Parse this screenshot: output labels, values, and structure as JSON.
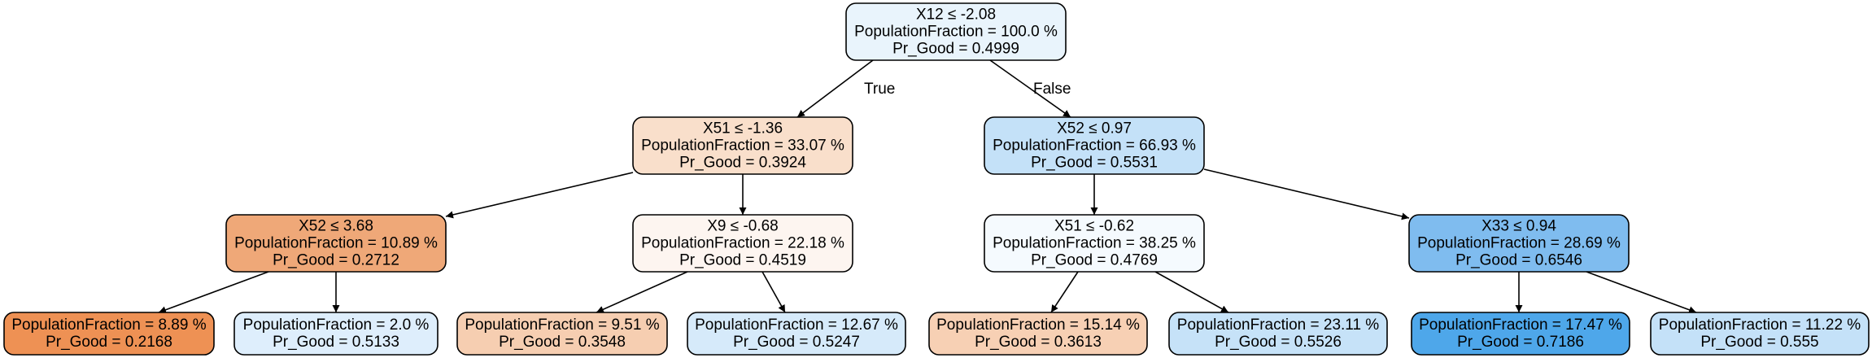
{
  "tree": {
    "nodes": [
      {
        "id": "root",
        "lines": [
          "X12 ≤ -2.08",
          "PopulationFraction = 100.0 %",
          "Pr_Good = 0.4999"
        ],
        "fill": "#e9f4fc"
      },
      {
        "id": "n1",
        "lines": [
          "X51 ≤ -1.36",
          "PopulationFraction = 33.07 %",
          "Pr_Good = 0.3924"
        ],
        "fill": "#f9dfcb"
      },
      {
        "id": "n2",
        "lines": [
          "X52 ≤ 0.97",
          "PopulationFraction = 66.93 %",
          "Pr_Good = 0.5531"
        ],
        "fill": "#c4e1f8"
      },
      {
        "id": "n3",
        "lines": [
          "X52 ≤ 3.68",
          "PopulationFraction = 10.89 %",
          "Pr_Good = 0.2712"
        ],
        "fill": "#efa878"
      },
      {
        "id": "n4",
        "lines": [
          "X9 ≤ -0.68",
          "PopulationFraction = 22.18 %",
          "Pr_Good = 0.4519"
        ],
        "fill": "#fdf5f0"
      },
      {
        "id": "n5",
        "lines": [
          "X51 ≤ -0.62",
          "PopulationFraction = 38.25 %",
          "Pr_Good = 0.4769"
        ],
        "fill": "#f5fafe"
      },
      {
        "id": "n6",
        "lines": [
          "X33 ≤ 0.94",
          "PopulationFraction = 28.69 %",
          "Pr_Good = 0.6546"
        ],
        "fill": "#7fbcef"
      },
      {
        "id": "l1",
        "lines": [
          "PopulationFraction = 8.89 %",
          "Pr_Good = 0.2168"
        ],
        "fill": "#ee9154"
      },
      {
        "id": "l2",
        "lines": [
          "PopulationFraction = 2.0 %",
          "Pr_Good = 0.5133"
        ],
        "fill": "#deeefc"
      },
      {
        "id": "l3",
        "lines": [
          "PopulationFraction = 9.51 %",
          "Pr_Good = 0.3548"
        ],
        "fill": "#f6ceb1"
      },
      {
        "id": "l4",
        "lines": [
          "PopulationFraction = 12.67 %",
          "Pr_Good = 0.5247"
        ],
        "fill": "#d6eafa"
      },
      {
        "id": "l5",
        "lines": [
          "PopulationFraction = 15.14 %",
          "Pr_Good = 0.3613"
        ],
        "fill": "#f7d0b4"
      },
      {
        "id": "l6",
        "lines": [
          "PopulationFraction = 23.11 %",
          "Pr_Good = 0.5526"
        ],
        "fill": "#c6e2f8"
      },
      {
        "id": "l7",
        "lines": [
          "PopulationFraction = 17.47 %",
          "Pr_Good = 0.7186"
        ],
        "fill": "#4ea7ea"
      },
      {
        "id": "l8",
        "lines": [
          "PopulationFraction = 11.22 %",
          "Pr_Good = 0.555"
        ],
        "fill": "#c4e1f8"
      }
    ],
    "edges": [
      {
        "from": "root",
        "to": "n1",
        "label": "True"
      },
      {
        "from": "root",
        "to": "n2",
        "label": "False"
      },
      {
        "from": "n1",
        "to": "n3",
        "label": ""
      },
      {
        "from": "n1",
        "to": "n4",
        "label": ""
      },
      {
        "from": "n2",
        "to": "n5",
        "label": ""
      },
      {
        "from": "n2",
        "to": "n6",
        "label": ""
      },
      {
        "from": "n3",
        "to": "l1",
        "label": ""
      },
      {
        "from": "n3",
        "to": "l2",
        "label": ""
      },
      {
        "from": "n4",
        "to": "l3",
        "label": ""
      },
      {
        "from": "n4",
        "to": "l4",
        "label": ""
      },
      {
        "from": "n5",
        "to": "l5",
        "label": ""
      },
      {
        "from": "n5",
        "to": "l6",
        "label": ""
      },
      {
        "from": "n6",
        "to": "l7",
        "label": ""
      },
      {
        "from": "n6",
        "to": "l8",
        "label": ""
      }
    ]
  }
}
